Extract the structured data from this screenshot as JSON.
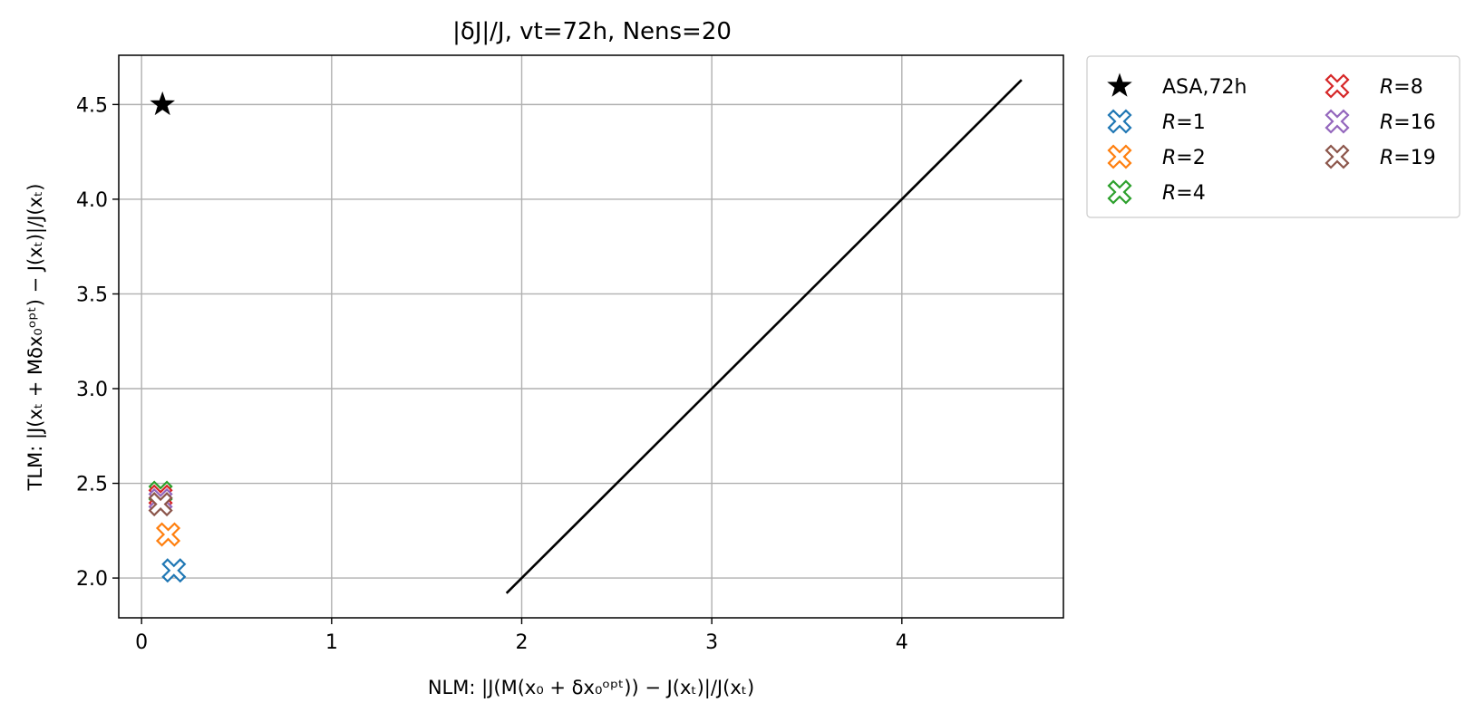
{
  "chart_data": {
    "type": "scatter",
    "title": "|δJ|/J, vt=72h, Nens=20",
    "xlabel": "NLM: |J(M(x₀ + δx₀ᵒᵖᵗ)) − J(xₜ)|/J(xₜ)",
    "ylabel": "TLM: |J(xₜ + Mδx₀ᵒᵖᵗ) − J(xₜ)|/J(xₜ)",
    "xlim": [
      -0.12,
      4.85
    ],
    "ylim": [
      1.79,
      4.76
    ],
    "x_ticks": [
      0,
      1,
      2,
      3,
      4
    ],
    "y_ticks": [
      2.0,
      2.5,
      3.0,
      3.5,
      4.0,
      4.5
    ],
    "grid": true,
    "legend": {
      "placement": "outside-top-right",
      "columns": 2
    },
    "reference_line": {
      "x": [
        1.92,
        4.63
      ],
      "y": [
        1.92,
        4.63
      ],
      "color": "#000000"
    },
    "series": [
      {
        "name": "ASA,72h",
        "label_prefix": "",
        "label_value": "ASA,72h",
        "marker": "star",
        "color": "#000000",
        "points": [
          {
            "x": 0.11,
            "y": 4.5
          }
        ]
      },
      {
        "name": "R=1",
        "label_prefix": "R",
        "label_value": "=1",
        "marker": "x-outline",
        "color": "#1f77b4",
        "points": [
          {
            "x": 0.17,
            "y": 2.04
          }
        ]
      },
      {
        "name": "R=2",
        "label_prefix": "R",
        "label_value": "=2",
        "marker": "x-outline",
        "color": "#ff7f0e",
        "points": [
          {
            "x": 0.14,
            "y": 2.23
          }
        ]
      },
      {
        "name": "R=4",
        "label_prefix": "R",
        "label_value": "=4",
        "marker": "x-outline",
        "color": "#2ca02c",
        "points": [
          {
            "x": 0.1,
            "y": 2.45
          }
        ]
      },
      {
        "name": "R=8",
        "label_prefix": "R",
        "label_value": "=8",
        "marker": "x-outline",
        "color": "#d62728",
        "points": [
          {
            "x": 0.1,
            "y": 2.43
          }
        ]
      },
      {
        "name": "R=16",
        "label_prefix": "R",
        "label_value": "=16",
        "marker": "x-outline",
        "color": "#9467bd",
        "points": [
          {
            "x": 0.1,
            "y": 2.41
          }
        ]
      },
      {
        "name": "R=19",
        "label_prefix": "R",
        "label_value": "=19",
        "marker": "x-outline",
        "color": "#8c564b",
        "points": [
          {
            "x": 0.1,
            "y": 2.39
          }
        ]
      }
    ]
  }
}
